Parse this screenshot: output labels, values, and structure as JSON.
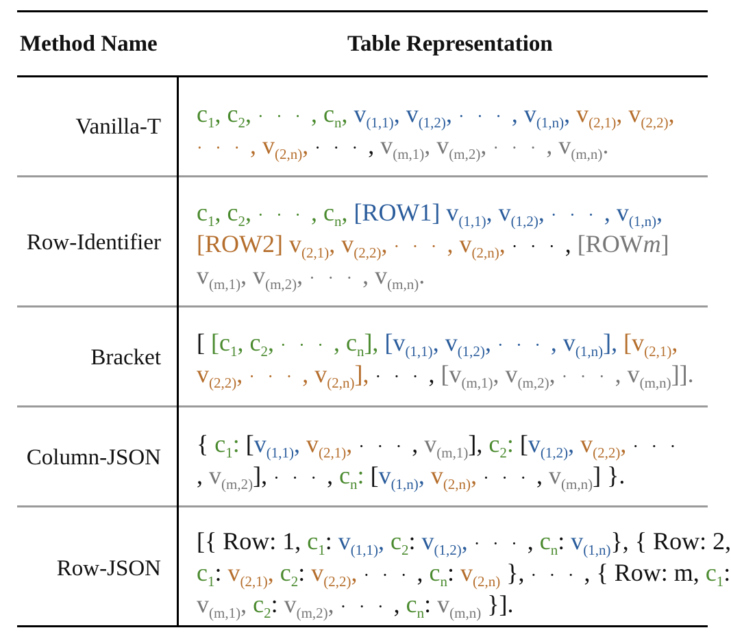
{
  "header": {
    "method_col": "Method Name",
    "repr_col": "Table Representation"
  },
  "rows": [
    {
      "name": "Vanilla-T"
    },
    {
      "name": "Row-Identifier"
    },
    {
      "name": "Bracket"
    },
    {
      "name": "Column-JSON"
    },
    {
      "name": "Row-JSON"
    }
  ],
  "tokens": {
    "c": "c",
    "v": "v",
    "dots": "· · ·",
    "row1": "[ROW1]",
    "row2": "[ROW2]",
    "rowm_prefix": "[ROW",
    "rowm_var": "m",
    "rowm_suffix": "]",
    "row_key": "Row:",
    "row_1": "1,",
    "row_2": "2,",
    "row_m": "m,"
  },
  "colors": {
    "column_names": "#4a8a2e",
    "row1": "#2b5d9c",
    "row2": "#b56e2c",
    "rowm": "#777777"
  }
}
